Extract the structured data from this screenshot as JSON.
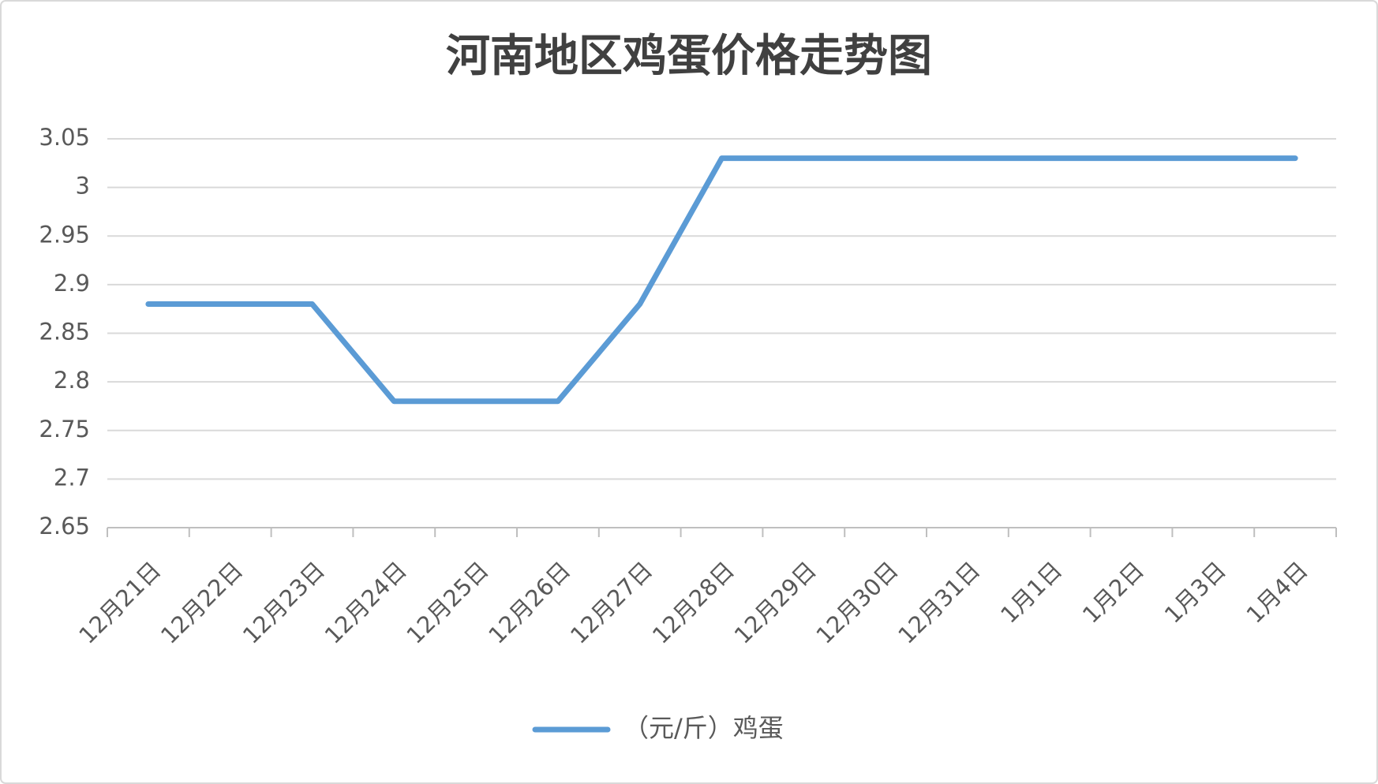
{
  "chart_data": {
    "type": "line",
    "title": "河南地区鸡蛋价格走势图",
    "categories": [
      "12月21日",
      "12月22日",
      "12月23日",
      "12月24日",
      "12月25日",
      "12月26日",
      "12月27日",
      "12月28日",
      "12月29日",
      "12月30日",
      "12月31日",
      "1月1日",
      "1月2日",
      "1月3日",
      "1月4日"
    ],
    "series": [
      {
        "name": "（元/斤）鸡蛋",
        "color": "#5b9bd5",
        "values": [
          2.88,
          2.88,
          2.88,
          2.78,
          2.78,
          2.78,
          2.88,
          3.03,
          3.03,
          3.03,
          3.03,
          3.03,
          3.03,
          3.03,
          3.03
        ]
      }
    ],
    "ylim": [
      2.65,
      3.05
    ],
    "yticks": [
      2.65,
      2.7,
      2.75,
      2.8,
      2.85,
      2.9,
      2.95,
      3,
      3.05
    ],
    "grid": true,
    "legend": "bottom"
  }
}
